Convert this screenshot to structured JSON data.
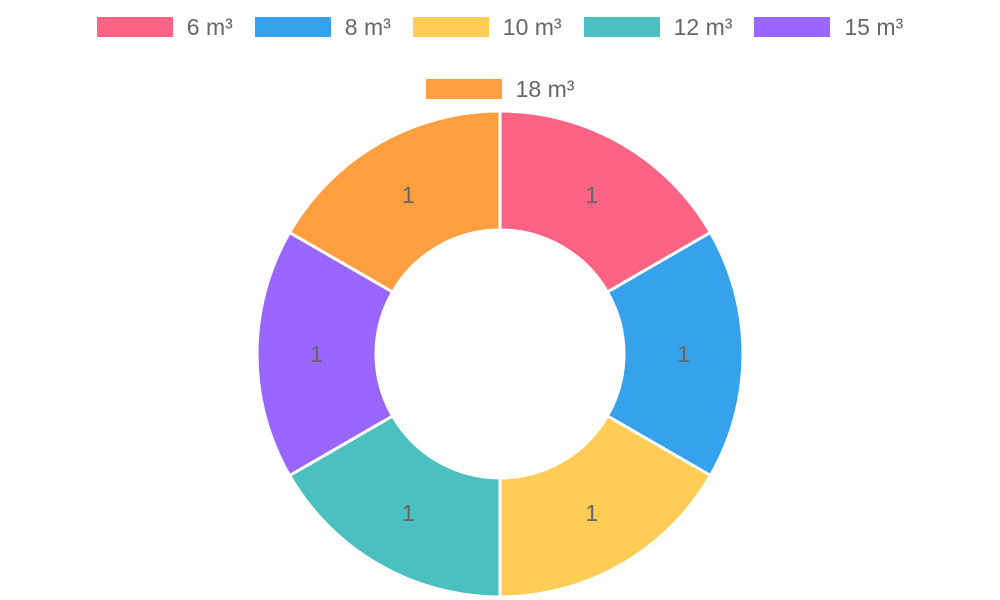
{
  "chart_data": {
    "type": "pie",
    "variant": "doughnut",
    "title": "",
    "categories": [
      "6 m³",
      "8 m³",
      "10 m³",
      "12 m³",
      "15 m³",
      "18 m³"
    ],
    "values": [
      1,
      1,
      1,
      1,
      1,
      1
    ],
    "data_labels": [
      "1",
      "1",
      "1",
      "1",
      "1",
      "1"
    ],
    "colors": [
      "#ff6384",
      "#36a2eb",
      "#ffcd56",
      "#4bc0c0",
      "#9966ff",
      "#ff9f40"
    ],
    "legend_position": "top"
  }
}
